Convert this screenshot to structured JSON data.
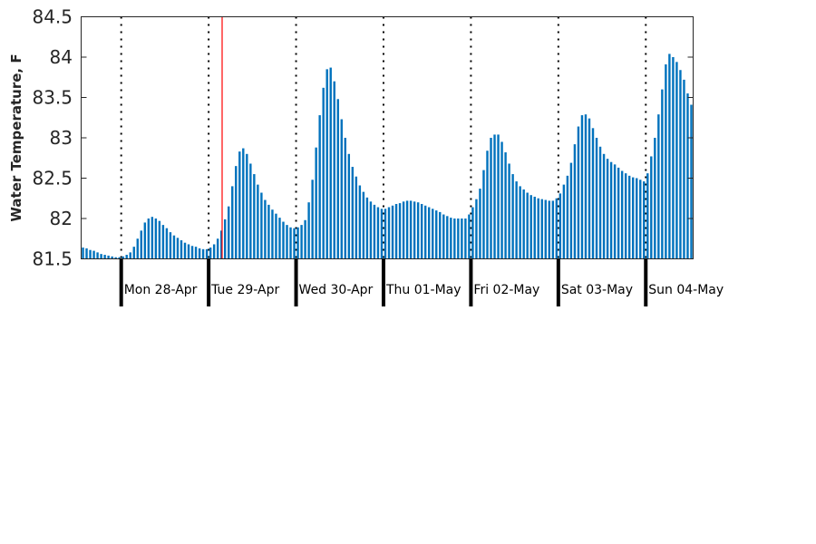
{
  "chart_data": {
    "type": "bar",
    "title": "",
    "xlabel": "",
    "ylabel": "Water Temperature, F",
    "ylim": [
      81.5,
      84.5
    ],
    "yticks": [
      "81.5",
      "82",
      "82.5",
      "83",
      "83.5",
      "84",
      "84.5"
    ],
    "bar_color": "#0072bd",
    "current_time_marker_color": "#ff0000",
    "current_time_marker_hour": 27.7,
    "hour_start": -11,
    "hours_per_bar": 1,
    "day_boundaries_hours": [
      0,
      24,
      48,
      72,
      96,
      120,
      144
    ],
    "day_labels": [
      "Mon 28-Apr",
      "Tue 29-Apr",
      "Wed 30-Apr",
      "Thu 01-May",
      "Fri 02-May",
      "Sat 03-May",
      "Sun 04-May"
    ],
    "grid": "dotted vertical at day boundaries",
    "series": [
      {
        "values": [
          81.64,
          81.63,
          81.61,
          81.6,
          81.58,
          81.56,
          81.55,
          81.54,
          81.53,
          81.52,
          81.52,
          81.53,
          81.55,
          81.58,
          81.65,
          81.75,
          81.85,
          81.95,
          82.0,
          82.02,
          82.0,
          81.97,
          81.92,
          81.88,
          81.83,
          81.79,
          81.76,
          81.73,
          81.7,
          81.68,
          81.66,
          81.65,
          81.63,
          81.62,
          81.62,
          81.64,
          81.68,
          81.75,
          81.85,
          81.99,
          82.15,
          82.4,
          82.65,
          82.83,
          82.87,
          82.8,
          82.68,
          82.55,
          82.42,
          82.32,
          82.23,
          82.17,
          82.11,
          82.06,
          82.01,
          81.96,
          81.92,
          81.89,
          81.88,
          81.89,
          81.92,
          81.98,
          82.2,
          82.48,
          82.88,
          83.28,
          83.62,
          83.85,
          83.87,
          83.7,
          83.48,
          83.23,
          83.0,
          82.8,
          82.64,
          82.52,
          82.41,
          82.33,
          82.26,
          82.21,
          82.17,
          82.14,
          82.12,
          82.12,
          82.14,
          82.16,
          82.18,
          82.19,
          82.21,
          82.22,
          82.22,
          82.21,
          82.2,
          82.18,
          82.16,
          82.14,
          82.12,
          82.1,
          82.08,
          82.05,
          82.03,
          82.01,
          82.0,
          82.0,
          82.0,
          82.0,
          82.05,
          82.14,
          82.24,
          82.37,
          82.6,
          82.84,
          83.0,
          83.04,
          83.04,
          82.95,
          82.82,
          82.68,
          82.55,
          82.46,
          82.4,
          82.36,
          82.32,
          82.29,
          82.27,
          82.25,
          82.24,
          82.23,
          82.22,
          82.22,
          82.25,
          82.31,
          82.42,
          82.53,
          82.69,
          82.92,
          83.14,
          83.28,
          83.29,
          83.24,
          83.12,
          83.0,
          82.89,
          82.8,
          82.74,
          82.7,
          82.67,
          82.63,
          82.59,
          82.56,
          82.53,
          82.51,
          82.5,
          82.48,
          82.46,
          82.56,
          82.77,
          83.0,
          83.29,
          83.6,
          83.91,
          84.04,
          84.0,
          83.94,
          83.84,
          83.72,
          83.55,
          83.41
        ]
      }
    ]
  }
}
